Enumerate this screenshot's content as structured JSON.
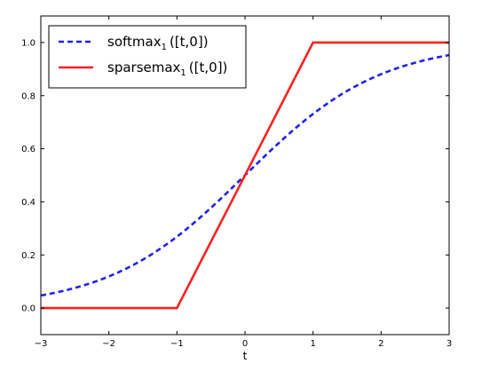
{
  "chart_data": {
    "type": "line",
    "title": "",
    "xlabel": "t",
    "ylabel": "",
    "xlim": [
      -3,
      3
    ],
    "ylim": [
      -0.1,
      1.1
    ],
    "xticks": [
      -3,
      -2,
      -1,
      0,
      1,
      2,
      3
    ],
    "xtick_labels": [
      "−3",
      "−2",
      "−1",
      "0",
      "1",
      "2",
      "3"
    ],
    "yticks": [
      0.0,
      0.2,
      0.4,
      0.6,
      0.8,
      1.0
    ],
    "ytick_labels": [
      "0.0",
      "0.2",
      "0.4",
      "0.6",
      "0.8",
      "1.0"
    ],
    "grid": false,
    "legend_position": "top-left",
    "series": [
      {
        "name_main": "softmax",
        "name_sub": "1",
        "name_args": "([t,0])",
        "color": "#1f1fff",
        "style": "dashed",
        "x": [
          -3.0,
          -2.5,
          -2.0,
          -1.5,
          -1.0,
          -0.5,
          0.0,
          0.5,
          1.0,
          1.5,
          2.0,
          2.5,
          3.0
        ],
        "y": [
          0.047,
          0.076,
          0.119,
          0.182,
          0.269,
          0.378,
          0.5,
          0.622,
          0.731,
          0.818,
          0.881,
          0.924,
          0.953
        ]
      },
      {
        "name_main": "sparsemax",
        "name_sub": "1",
        "name_args": "([t,0])",
        "color": "#ff2020",
        "style": "solid",
        "x": [
          -3,
          -1,
          1,
          3
        ],
        "y": [
          0.0,
          0.0,
          1.0,
          1.0
        ]
      }
    ]
  }
}
